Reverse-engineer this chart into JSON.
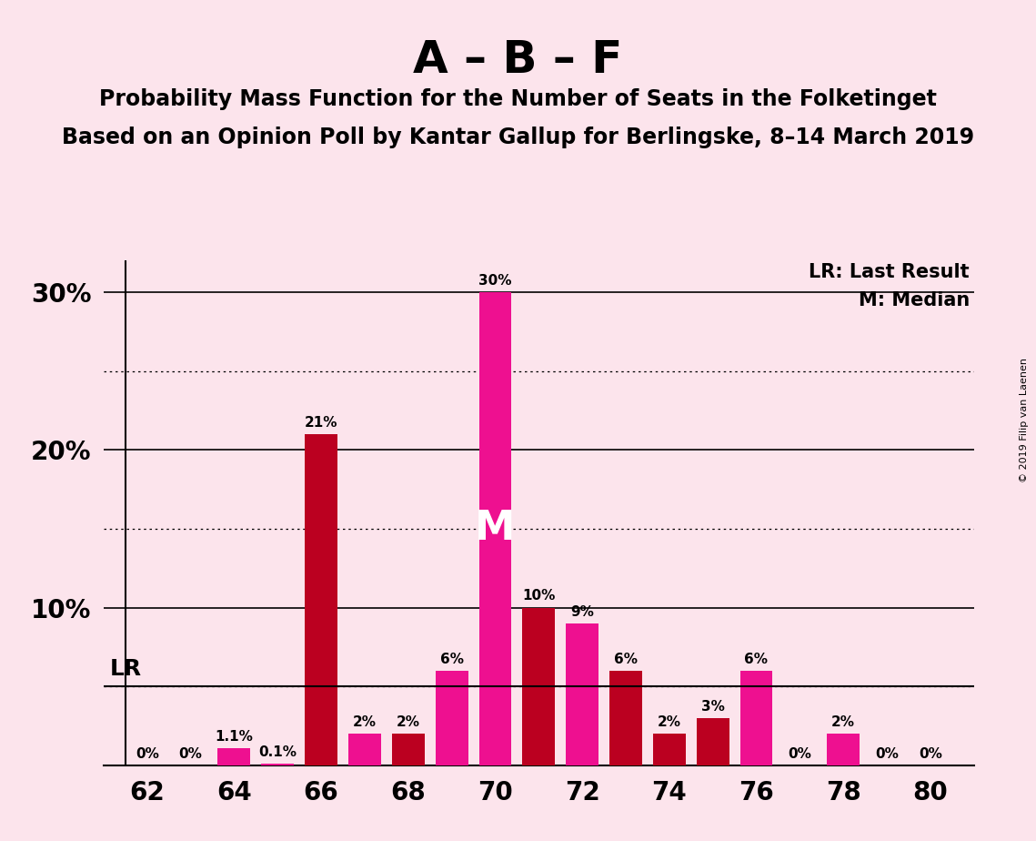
{
  "title_main": "A – B – F",
  "title_sub1": "Probability Mass Function for the Number of Seats in the Folketinget",
  "title_sub2": "Based on an Opinion Poll by Kantar Gallup for Berlingske, 8–14 March 2019",
  "copyright": "© 2019 Filip van Laenen",
  "background_color": "#fce4ec",
  "bar_color_magenta": "#EE1090",
  "bar_color_crimson": "#BB0020",
  "seats": [
    62,
    63,
    64,
    65,
    66,
    67,
    68,
    69,
    70,
    71,
    72,
    73,
    74,
    75,
    76,
    77,
    78,
    79,
    80
  ],
  "values": [
    0.0,
    0.0,
    1.1,
    0.1,
    21.0,
    2.0,
    2.0,
    6.0,
    30.0,
    10.0,
    9.0,
    6.0,
    2.0,
    3.0,
    6.0,
    0.0,
    2.0,
    0.0,
    0.0
  ],
  "bar_colors": [
    "#EE1090",
    "#EE1090",
    "#EE1090",
    "#EE1090",
    "#BB0020",
    "#EE1090",
    "#BB0020",
    "#EE1090",
    "#EE1090",
    "#BB0020",
    "#EE1090",
    "#BB0020",
    "#BB0020",
    "#BB0020",
    "#EE1090",
    "#EE1090",
    "#EE1090",
    "#EE1090",
    "#EE1090"
  ],
  "labels": [
    "0%",
    "0%",
    "1.1%",
    "0.1%",
    "21%",
    "2%",
    "2%",
    "6%",
    "30%",
    "10%",
    "9%",
    "6%",
    "2%",
    "3%",
    "6%",
    "0%",
    "2%",
    "0%",
    "0%"
  ],
  "median_seat": 70,
  "lr_value": 5.0,
  "lr_label": "LR",
  "lr_legend": "LR: Last Result",
  "median_legend": "M: Median",
  "ylim": [
    0,
    32
  ],
  "xlim": [
    61.0,
    81.0
  ],
  "xlabel_seats": [
    62,
    64,
    66,
    68,
    70,
    72,
    74,
    76,
    78,
    80
  ],
  "dotted_yticks": [
    5,
    15,
    25
  ],
  "solid_yticks": [
    10,
    20,
    30
  ],
  "label_fontsize": 11,
  "tick_fontsize": 20,
  "title_main_fontsize": 36,
  "title_sub_fontsize": 17
}
